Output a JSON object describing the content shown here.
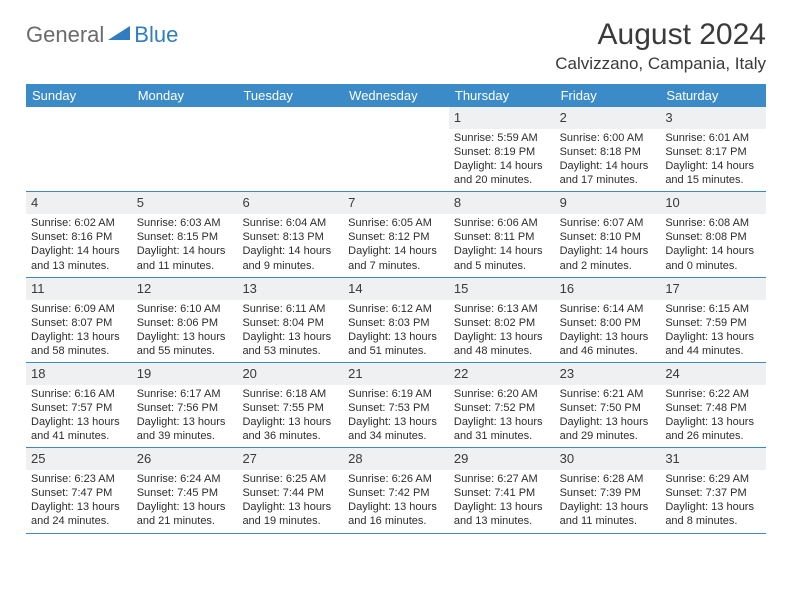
{
  "logo": {
    "text1": "General",
    "text2": "Blue"
  },
  "title": "August 2024",
  "location": "Calvizzano, Campania, Italy",
  "colors": {
    "header_bg": "#3b8bc8",
    "header_text": "#ffffff",
    "daynum_bg": "#eef0f2",
    "border": "#3b8bc8",
    "logo_gray": "#6b6b6b",
    "logo_blue": "#2f7dc0"
  },
  "day_headers": [
    "Sunday",
    "Monday",
    "Tuesday",
    "Wednesday",
    "Thursday",
    "Friday",
    "Saturday"
  ],
  "weeks": [
    [
      {
        "empty": true
      },
      {
        "empty": true
      },
      {
        "empty": true
      },
      {
        "empty": true
      },
      {
        "day": "1",
        "sunrise": "5:59 AM",
        "sunset": "8:19 PM",
        "daylight": "14 hours and 20 minutes."
      },
      {
        "day": "2",
        "sunrise": "6:00 AM",
        "sunset": "8:18 PM",
        "daylight": "14 hours and 17 minutes."
      },
      {
        "day": "3",
        "sunrise": "6:01 AM",
        "sunset": "8:17 PM",
        "daylight": "14 hours and 15 minutes."
      }
    ],
    [
      {
        "day": "4",
        "sunrise": "6:02 AM",
        "sunset": "8:16 PM",
        "daylight": "14 hours and 13 minutes."
      },
      {
        "day": "5",
        "sunrise": "6:03 AM",
        "sunset": "8:15 PM",
        "daylight": "14 hours and 11 minutes."
      },
      {
        "day": "6",
        "sunrise": "6:04 AM",
        "sunset": "8:13 PM",
        "daylight": "14 hours and 9 minutes."
      },
      {
        "day": "7",
        "sunrise": "6:05 AM",
        "sunset": "8:12 PM",
        "daylight": "14 hours and 7 minutes."
      },
      {
        "day": "8",
        "sunrise": "6:06 AM",
        "sunset": "8:11 PM",
        "daylight": "14 hours and 5 minutes."
      },
      {
        "day": "9",
        "sunrise": "6:07 AM",
        "sunset": "8:10 PM",
        "daylight": "14 hours and 2 minutes."
      },
      {
        "day": "10",
        "sunrise": "6:08 AM",
        "sunset": "8:08 PM",
        "daylight": "14 hours and 0 minutes."
      }
    ],
    [
      {
        "day": "11",
        "sunrise": "6:09 AM",
        "sunset": "8:07 PM",
        "daylight": "13 hours and 58 minutes."
      },
      {
        "day": "12",
        "sunrise": "6:10 AM",
        "sunset": "8:06 PM",
        "daylight": "13 hours and 55 minutes."
      },
      {
        "day": "13",
        "sunrise": "6:11 AM",
        "sunset": "8:04 PM",
        "daylight": "13 hours and 53 minutes."
      },
      {
        "day": "14",
        "sunrise": "6:12 AM",
        "sunset": "8:03 PM",
        "daylight": "13 hours and 51 minutes."
      },
      {
        "day": "15",
        "sunrise": "6:13 AM",
        "sunset": "8:02 PM",
        "daylight": "13 hours and 48 minutes."
      },
      {
        "day": "16",
        "sunrise": "6:14 AM",
        "sunset": "8:00 PM",
        "daylight": "13 hours and 46 minutes."
      },
      {
        "day": "17",
        "sunrise": "6:15 AM",
        "sunset": "7:59 PM",
        "daylight": "13 hours and 44 minutes."
      }
    ],
    [
      {
        "day": "18",
        "sunrise": "6:16 AM",
        "sunset": "7:57 PM",
        "daylight": "13 hours and 41 minutes."
      },
      {
        "day": "19",
        "sunrise": "6:17 AM",
        "sunset": "7:56 PM",
        "daylight": "13 hours and 39 minutes."
      },
      {
        "day": "20",
        "sunrise": "6:18 AM",
        "sunset": "7:55 PM",
        "daylight": "13 hours and 36 minutes."
      },
      {
        "day": "21",
        "sunrise": "6:19 AM",
        "sunset": "7:53 PM",
        "daylight": "13 hours and 34 minutes."
      },
      {
        "day": "22",
        "sunrise": "6:20 AM",
        "sunset": "7:52 PM",
        "daylight": "13 hours and 31 minutes."
      },
      {
        "day": "23",
        "sunrise": "6:21 AM",
        "sunset": "7:50 PM",
        "daylight": "13 hours and 29 minutes."
      },
      {
        "day": "24",
        "sunrise": "6:22 AM",
        "sunset": "7:48 PM",
        "daylight": "13 hours and 26 minutes."
      }
    ],
    [
      {
        "day": "25",
        "sunrise": "6:23 AM",
        "sunset": "7:47 PM",
        "daylight": "13 hours and 24 minutes."
      },
      {
        "day": "26",
        "sunrise": "6:24 AM",
        "sunset": "7:45 PM",
        "daylight": "13 hours and 21 minutes."
      },
      {
        "day": "27",
        "sunrise": "6:25 AM",
        "sunset": "7:44 PM",
        "daylight": "13 hours and 19 minutes."
      },
      {
        "day": "28",
        "sunrise": "6:26 AM",
        "sunset": "7:42 PM",
        "daylight": "13 hours and 16 minutes."
      },
      {
        "day": "29",
        "sunrise": "6:27 AM",
        "sunset": "7:41 PM",
        "daylight": "13 hours and 13 minutes."
      },
      {
        "day": "30",
        "sunrise": "6:28 AM",
        "sunset": "7:39 PM",
        "daylight": "13 hours and 11 minutes."
      },
      {
        "day": "31",
        "sunrise": "6:29 AM",
        "sunset": "7:37 PM",
        "daylight": "13 hours and 8 minutes."
      }
    ]
  ],
  "labels": {
    "sunrise": "Sunrise: ",
    "sunset": "Sunset: ",
    "daylight": "Daylight: "
  }
}
